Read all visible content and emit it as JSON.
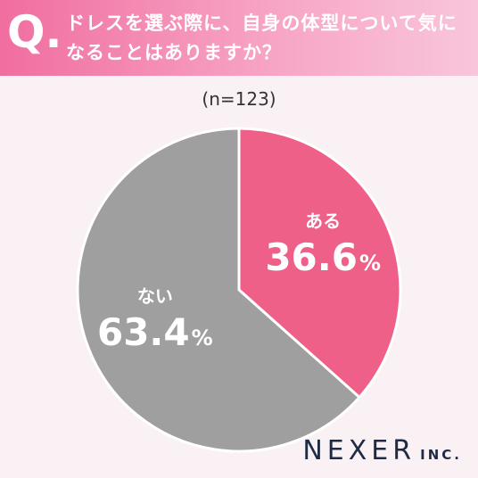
{
  "header": {
    "q_mark": "Q.",
    "question": "ドレスを選ぶ際に、自身の体型について気になることはありますか？"
  },
  "sample_size": "(n=123)",
  "chart_data": {
    "type": "pie",
    "title": "ドレスを選ぶ際に、自身の体型について気になることはありますか？",
    "slices": [
      {
        "label": "ある",
        "value": 36.6,
        "display": "36.6",
        "unit": "%",
        "color": "#ef6088"
      },
      {
        "label": "ない",
        "value": 63.4,
        "display": "63.4",
        "unit": "%",
        "color": "#9f9f9f"
      }
    ]
  },
  "logo": {
    "main": "NEXER",
    "sub": "INC."
  }
}
